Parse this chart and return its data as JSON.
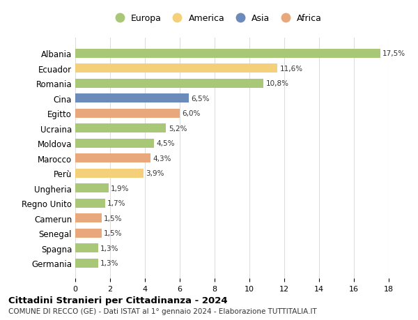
{
  "countries": [
    "Germania",
    "Spagna",
    "Senegal",
    "Camerun",
    "Regno Unito",
    "Ungheria",
    "Perù",
    "Marocco",
    "Moldova",
    "Ucraina",
    "Egitto",
    "Cina",
    "Romania",
    "Ecuador",
    "Albania"
  ],
  "values": [
    1.3,
    1.3,
    1.5,
    1.5,
    1.7,
    1.9,
    3.9,
    4.3,
    4.5,
    5.2,
    6.0,
    6.5,
    10.8,
    11.6,
    17.5
  ],
  "labels": [
    "1,3%",
    "1,3%",
    "1,5%",
    "1,5%",
    "1,7%",
    "1,9%",
    "3,9%",
    "4,3%",
    "4,5%",
    "5,2%",
    "6,0%",
    "6,5%",
    "10,8%",
    "11,6%",
    "17,5%"
  ],
  "continents": [
    "Europa",
    "Europa",
    "Africa",
    "Africa",
    "Europa",
    "Europa",
    "America",
    "Africa",
    "Europa",
    "Europa",
    "Africa",
    "Asia",
    "Europa",
    "America",
    "Europa"
  ],
  "continent_colors": {
    "Europa": "#a8c878",
    "America": "#f5d07a",
    "Asia": "#6b8cba",
    "Africa": "#e8a87c"
  },
  "legend_order": [
    "Europa",
    "America",
    "Asia",
    "Africa"
  ],
  "title": "Cittadini Stranieri per Cittadinanza - 2024",
  "subtitle": "COMUNE DI RECCO (GE) - Dati ISTAT al 1° gennaio 2024 - Elaborazione TUTTITALIA.IT",
  "xlim": [
    0,
    18
  ],
  "xticks": [
    0,
    2,
    4,
    6,
    8,
    10,
    12,
    14,
    16,
    18
  ],
  "background_color": "#ffffff",
  "grid_color": "#dddddd",
  "bar_height": 0.6
}
